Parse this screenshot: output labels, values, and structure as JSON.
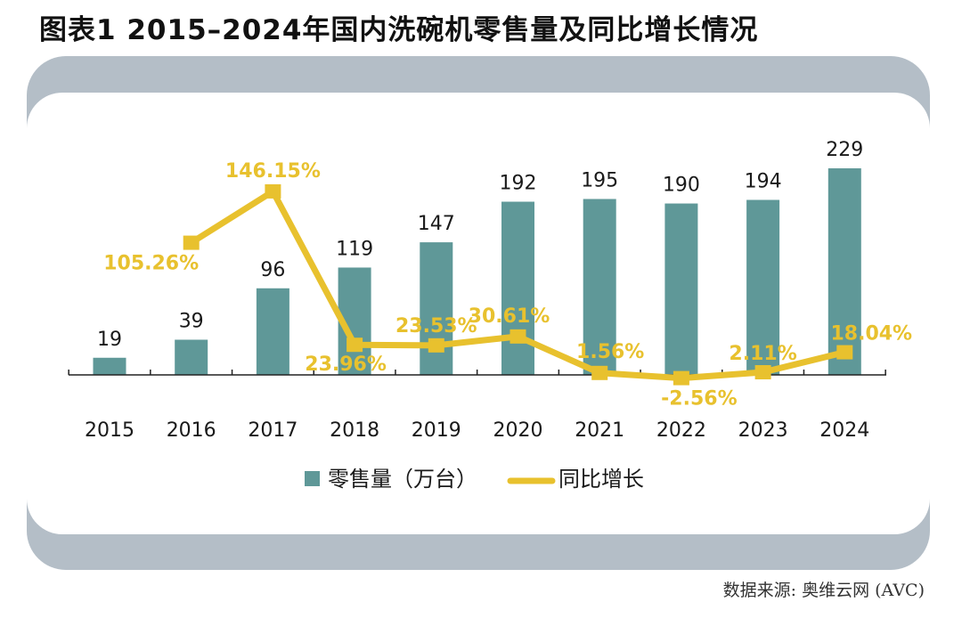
{
  "chart_data": {
    "type": "bar",
    "title": "图表1 2015–2024年国内洗碗机零售量及同比增长情况",
    "source": "数据来源: 奥维云网 (AVC)",
    "categories": [
      "2015",
      "2016",
      "2017",
      "2018",
      "2019",
      "2020",
      "2021",
      "2022",
      "2023",
      "2024"
    ],
    "series": [
      {
        "name": "零售量（万台）",
        "type": "bar",
        "color": "#5f9898",
        "values": [
          19,
          39,
          96,
          119,
          147,
          192,
          195,
          190,
          194,
          229
        ],
        "labels": [
          "19",
          "39",
          "96",
          "119",
          "147",
          "192",
          "195",
          "190",
          "194",
          "229"
        ]
      },
      {
        "name": "同比增长",
        "type": "line",
        "color": "#e8c12e",
        "values": [
          null,
          105.26,
          146.15,
          23.96,
          23.53,
          30.61,
          1.56,
          -2.56,
          2.11,
          18.04
        ],
        "labels": [
          "",
          "105.26%",
          "146.15%",
          "23.96%",
          "23.53%",
          "30.61%",
          "1.56%",
          "-2.56%",
          "2.11%",
          "18.04%"
        ]
      }
    ],
    "xlabel": "",
    "ylabel": "",
    "grid": false,
    "legend": {
      "placement": "bottom",
      "items": [
        "零售量（万台）",
        "同比增长"
      ]
    }
  },
  "header": {
    "title": "图表1  2015–2024年国内洗碗机零售量及同比增长情况"
  },
  "footer": {
    "source": "数据来源: 奥维云网 (AVC)"
  }
}
